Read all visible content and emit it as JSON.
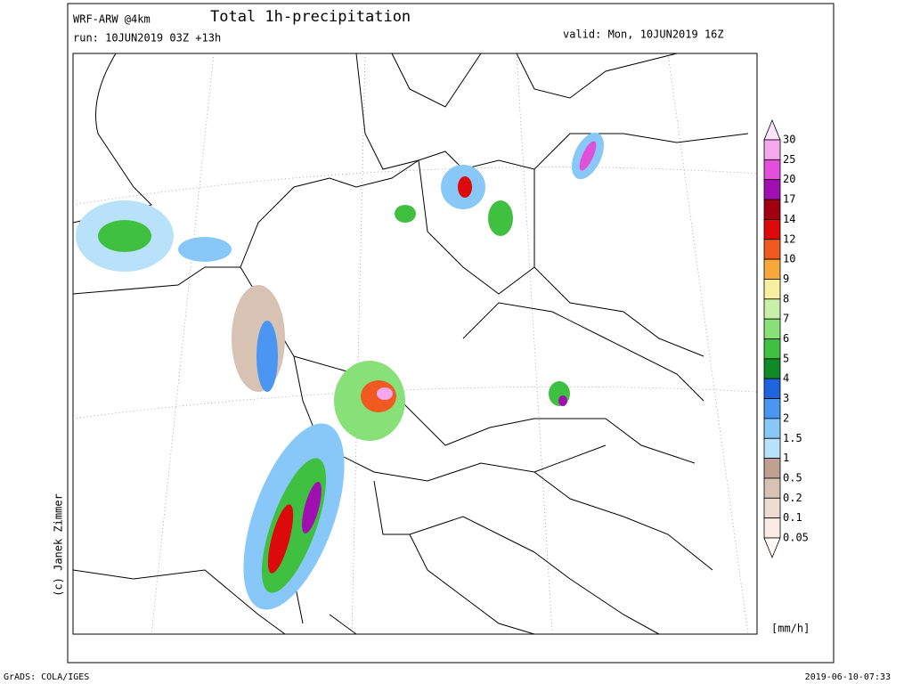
{
  "header": {
    "model": "WRF-ARW @4km",
    "title": "Total 1h-precipitation",
    "run": "run: 10JUN2019 03Z +13h",
    "valid": "valid: Mon, 10JUN2019 16Z"
  },
  "credit": "(c) Janek Zimmer",
  "legend": {
    "levels": [
      30,
      25,
      20,
      17,
      14,
      12,
      10,
      9,
      8,
      7,
      6,
      5,
      4,
      3,
      2,
      1.5,
      1,
      0.5,
      0.2,
      0.1,
      0.05
    ],
    "colors": [
      "#fde4fb",
      "#f6a8ee",
      "#e050d8",
      "#a010b0",
      "#a00010",
      "#dc0a0a",
      "#f05a20",
      "#f8a838",
      "#f8f0a0",
      "#c8f0a8",
      "#88e078",
      "#40c040",
      "#108a28",
      "#1e64dc",
      "#4a96f0",
      "#88c8f8",
      "#b8e2fa",
      "#c0a092",
      "#d8c2b4",
      "#ecdcd2",
      "#f8ece4",
      "#fff8f4"
    ],
    "unit": "[mm/h]"
  },
  "footer": {
    "left": "GrADS: COLA/IGES",
    "right": "2019-06-10-07:33"
  }
}
